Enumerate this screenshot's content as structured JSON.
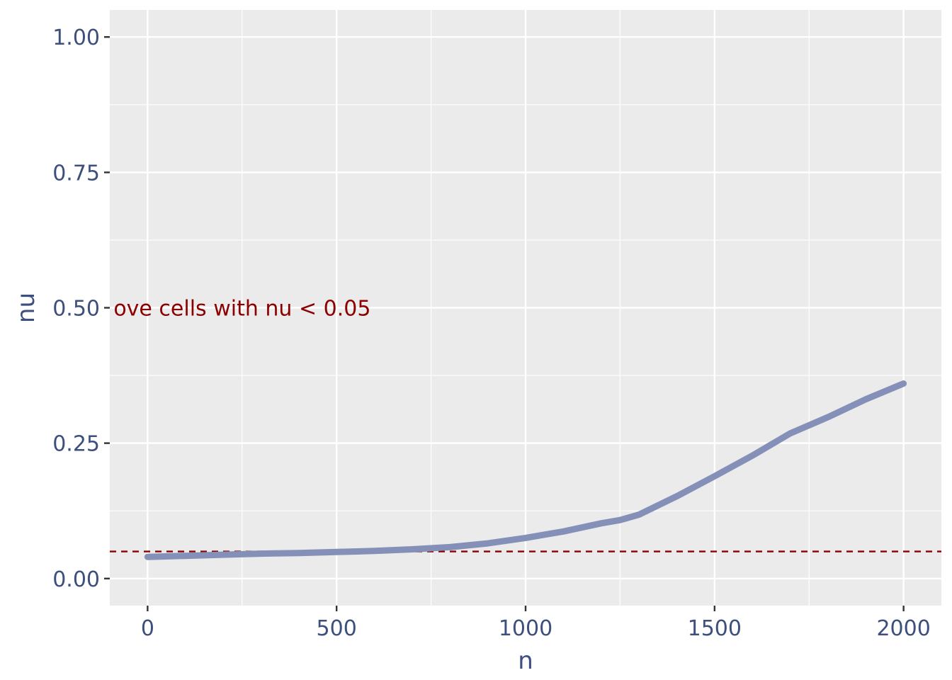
{
  "chart_data": {
    "type": "line",
    "xlabel": "n",
    "ylabel": "nu",
    "xlim": [
      -100,
      2100
    ],
    "ylim": [
      -0.05,
      1.05
    ],
    "x_ticks": [
      0,
      500,
      1000,
      1500,
      2000
    ],
    "x_tick_labels": [
      "0",
      "500",
      "1000",
      "1500",
      "2000"
    ],
    "y_ticks": [
      0,
      0.25,
      0.5,
      0.75,
      1.0
    ],
    "y_tick_labels": [
      "0.00",
      "0.25",
      "0.50",
      "0.75",
      "1.00"
    ],
    "grid": true,
    "series": [
      {
        "color": "#8590b8",
        "x": [
          0,
          100,
          200,
          300,
          400,
          500,
          600,
          700,
          800,
          900,
          1000,
          1100,
          1200,
          1250,
          1300,
          1400,
          1500,
          1600,
          1700,
          1800,
          1900,
          2000
        ],
        "y": [
          0.04,
          0.042,
          0.044,
          0.046,
          0.047,
          0.049,
          0.051,
          0.054,
          0.058,
          0.065,
          0.075,
          0.087,
          0.102,
          0.108,
          0.118,
          0.152,
          0.189,
          0.227,
          0.268,
          0.298,
          0.331,
          0.36
        ]
      }
    ],
    "reference_line": {
      "y": 0.05,
      "color": "#8b0000",
      "style": "dashed"
    },
    "annotation": {
      "text": "ove cells with nu <  0.05",
      "color": "#8b0000",
      "x": -90,
      "y": 0.5
    },
    "colors": {
      "panel_bg": "#ebebeb",
      "grid": "#ffffff",
      "axis_text": "#3d4f7d"
    }
  }
}
